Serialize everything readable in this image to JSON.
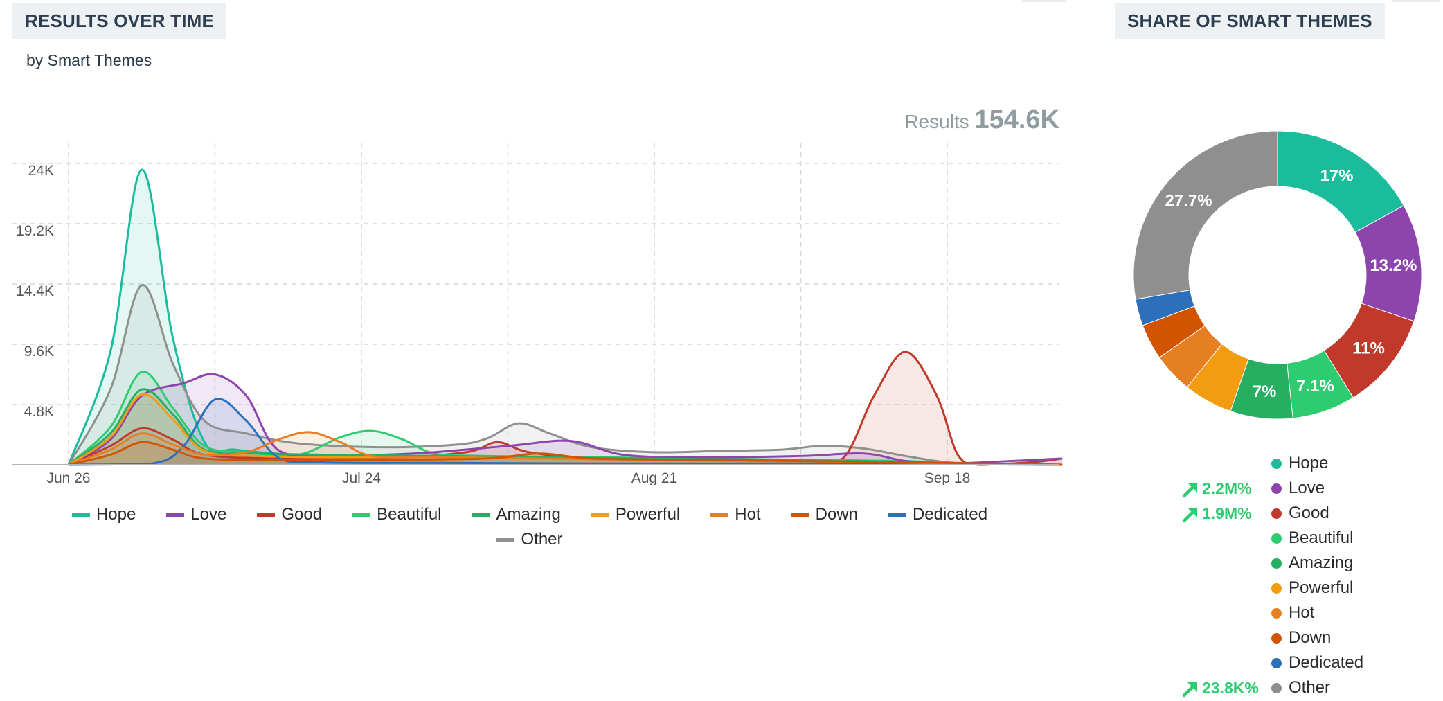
{
  "left_panel": {
    "title": "RESULTS OVER TIME",
    "subtitle": "by Smart Themes",
    "results_label": "Results",
    "results_value": "154.6K"
  },
  "right_panel": {
    "title": "SHARE OF SMART THEMES"
  },
  "chart_data": [
    {
      "type": "area",
      "title": "RESULTS OVER TIME",
      "subtitle": "by Smart Themes",
      "xlabel": "",
      "ylabel": "",
      "x_ticks": [
        {
          "label": "Jun 26",
          "x": 0
        },
        {
          "label": "Jul 24",
          "x": 28
        },
        {
          "label": "Aug 21",
          "x": 56
        },
        {
          "label": "Sep 18",
          "x": 84
        }
      ],
      "xlim": [
        -5,
        96
      ],
      "y_ticks": [
        "4.8K",
        "9.6K",
        "14.4K",
        "19.2K",
        "24K"
      ],
      "y_tick_values": [
        4800,
        9600,
        14400,
        19200,
        24000
      ],
      "ylim": [
        0,
        24000
      ],
      "grid": true,
      "legend_position": "bottom",
      "series": [
        {
          "name": "Hope",
          "color": "#1abc9c",
          "points": [
            [
              0,
              0
            ],
            [
              4,
              9000
            ],
            [
              7,
              23500
            ],
            [
              10,
              10000
            ],
            [
              13,
              1800
            ],
            [
              16,
              1200
            ],
            [
              22,
              800
            ],
            [
              30,
              700
            ],
            [
              40,
              600
            ],
            [
              50,
              500
            ],
            [
              60,
              400
            ],
            [
              70,
              350
            ],
            [
              80,
              300
            ],
            [
              84,
              100
            ],
            [
              90,
              50
            ],
            [
              95,
              0
            ]
          ]
        },
        {
          "name": "Love",
          "color": "#8e44ad",
          "points": [
            [
              0,
              0
            ],
            [
              4,
              2000
            ],
            [
              7,
              5500
            ],
            [
              11,
              6500
            ],
            [
              14,
              7200
            ],
            [
              17,
              5500
            ],
            [
              20,
              1200
            ],
            [
              25,
              800
            ],
            [
              33,
              900
            ],
            [
              42,
              1500
            ],
            [
              48,
              1900
            ],
            [
              53,
              800
            ],
            [
              60,
              600
            ],
            [
              70,
              700
            ],
            [
              76,
              900
            ],
            [
              80,
              300
            ],
            [
              84,
              100
            ],
            [
              90,
              300
            ],
            [
              95,
              500
            ]
          ]
        },
        {
          "name": "Good",
          "color": "#c0392b",
          "points": [
            [
              0,
              0
            ],
            [
              4,
              1500
            ],
            [
              7,
              2900
            ],
            [
              10,
              2000
            ],
            [
              13,
              800
            ],
            [
              20,
              500
            ],
            [
              30,
              500
            ],
            [
              38,
              1000
            ],
            [
              41,
              1800
            ],
            [
              44,
              1000
            ],
            [
              50,
              500
            ],
            [
              60,
              400
            ],
            [
              70,
              300
            ],
            [
              74,
              500
            ],
            [
              77,
              5500
            ],
            [
              80,
              9000
            ],
            [
              83,
              5500
            ],
            [
              85,
              800
            ],
            [
              87,
              0
            ],
            [
              92,
              200
            ],
            [
              95,
              500
            ]
          ]
        },
        {
          "name": "Beautiful",
          "color": "#2ecc71",
          "points": [
            [
              0,
              0
            ],
            [
              4,
              3000
            ],
            [
              7,
              7400
            ],
            [
              10,
              4500
            ],
            [
              13,
              1500
            ],
            [
              17,
              1000
            ],
            [
              22,
              800
            ],
            [
              26,
              2200
            ],
            [
              29,
              2700
            ],
            [
              32,
              2000
            ],
            [
              35,
              900
            ],
            [
              40,
              700
            ],
            [
              50,
              600
            ],
            [
              60,
              500
            ],
            [
              70,
              400
            ],
            [
              80,
              300
            ],
            [
              86,
              100
            ],
            [
              95,
              0
            ]
          ]
        },
        {
          "name": "Amazing",
          "color": "#27ae60",
          "points": [
            [
              0,
              0
            ],
            [
              4,
              2500
            ],
            [
              7,
              6000
            ],
            [
              10,
              4000
            ],
            [
              13,
              1200
            ],
            [
              18,
              900
            ],
            [
              25,
              800
            ],
            [
              35,
              700
            ],
            [
              45,
              600
            ],
            [
              55,
              500
            ],
            [
              65,
              400
            ],
            [
              75,
              300
            ],
            [
              85,
              100
            ],
            [
              95,
              0
            ]
          ]
        },
        {
          "name": "Powerful",
          "color": "#f39c12",
          "points": [
            [
              0,
              0
            ],
            [
              4,
              2200
            ],
            [
              7,
              5600
            ],
            [
              10,
              3600
            ],
            [
              13,
              1100
            ],
            [
              18,
              700
            ],
            [
              25,
              600
            ],
            [
              35,
              600
            ],
            [
              45,
              500
            ],
            [
              55,
              400
            ],
            [
              65,
              300
            ],
            [
              75,
              250
            ],
            [
              85,
              100
            ],
            [
              95,
              0
            ]
          ]
        },
        {
          "name": "Hot",
          "color": "#e67e22",
          "points": [
            [
              0,
              0
            ],
            [
              4,
              1200
            ],
            [
              7,
              2500
            ],
            [
              10,
              1600
            ],
            [
              13,
              800
            ],
            [
              17,
              1000
            ],
            [
              20,
              2000
            ],
            [
              23,
              2600
            ],
            [
              26,
              1800
            ],
            [
              29,
              700
            ],
            [
              35,
              600
            ],
            [
              45,
              500
            ],
            [
              55,
              400
            ],
            [
              65,
              300
            ],
            [
              75,
              250
            ],
            [
              85,
              100
            ],
            [
              95,
              0
            ]
          ]
        },
        {
          "name": "Down",
          "color": "#d35400",
          "points": [
            [
              0,
              0
            ],
            [
              4,
              800
            ],
            [
              7,
              1800
            ],
            [
              10,
              1200
            ],
            [
              13,
              500
            ],
            [
              20,
              400
            ],
            [
              30,
              400
            ],
            [
              40,
              500
            ],
            [
              45,
              900
            ],
            [
              50,
              500
            ],
            [
              60,
              400
            ],
            [
              70,
              300
            ],
            [
              80,
              200
            ],
            [
              88,
              100
            ],
            [
              95,
              0
            ]
          ]
        },
        {
          "name": "Dedicated",
          "color": "#2c6fbb",
          "points": [
            [
              0,
              0
            ],
            [
              8,
              100
            ],
            [
              11,
              1500
            ],
            [
              14,
              5200
            ],
            [
              17,
              3500
            ],
            [
              20,
              600
            ],
            [
              24,
              200
            ],
            [
              35,
              150
            ],
            [
              50,
              100
            ],
            [
              70,
              100
            ],
            [
              95,
              0
            ]
          ]
        },
        {
          "name": "Other",
          "color": "#8f8f8f",
          "points": [
            [
              0,
              0
            ],
            [
              4,
              6000
            ],
            [
              7,
              14300
            ],
            [
              10,
              8000
            ],
            [
              13,
              3500
            ],
            [
              17,
              2500
            ],
            [
              22,
              1700
            ],
            [
              30,
              1400
            ],
            [
              37,
              1600
            ],
            [
              40,
              2100
            ],
            [
              43,
              3300
            ],
            [
              46,
              2500
            ],
            [
              50,
              1400
            ],
            [
              56,
              1000
            ],
            [
              62,
              1100
            ],
            [
              68,
              1200
            ],
            [
              72,
              1500
            ],
            [
              76,
              1300
            ],
            [
              80,
              700
            ],
            [
              84,
              200
            ],
            [
              88,
              100
            ],
            [
              95,
              0
            ]
          ]
        }
      ]
    },
    {
      "type": "pie",
      "title": "SHARE OF SMART THEMES",
      "donut": true,
      "slices": [
        {
          "name": "Hope",
          "value": 17,
          "label": "17%",
          "color": "#1abc9c"
        },
        {
          "name": "Love",
          "value": 13.2,
          "label": "13.2%",
          "color": "#8e44ad"
        },
        {
          "name": "Good",
          "value": 11,
          "label": "11%",
          "color": "#c0392b"
        },
        {
          "name": "Beautiful",
          "value": 7.1,
          "label": "7.1%",
          "color": "#2ecc71"
        },
        {
          "name": "Amazing",
          "value": 7,
          "label": "7%",
          "color": "#27ae60"
        },
        {
          "name": "Powerful",
          "value": 5.5,
          "label": "",
          "color": "#f39c12"
        },
        {
          "name": "Hot",
          "value": 4.5,
          "label": "",
          "color": "#e67e22"
        },
        {
          "name": "Down",
          "value": 4,
          "label": "",
          "color": "#d35400"
        },
        {
          "name": "Dedicated",
          "value": 3,
          "label": "",
          "color": "#2c6fbb"
        },
        {
          "name": "Other",
          "value": 27.7,
          "label": "27.7%",
          "color": "#8f8f8f"
        }
      ],
      "legend": [
        {
          "name": "Hope",
          "trend": ""
        },
        {
          "name": "Love",
          "trend": "2.2M%"
        },
        {
          "name": "Good",
          "trend": "1.9M%"
        },
        {
          "name": "Beautiful",
          "trend": ""
        },
        {
          "name": "Amazing",
          "trend": ""
        },
        {
          "name": "Powerful",
          "trend": ""
        },
        {
          "name": "Hot",
          "trend": ""
        },
        {
          "name": "Down",
          "trend": ""
        },
        {
          "name": "Dedicated",
          "trend": ""
        },
        {
          "name": "Other",
          "trend": "23.8K%"
        }
      ]
    }
  ]
}
